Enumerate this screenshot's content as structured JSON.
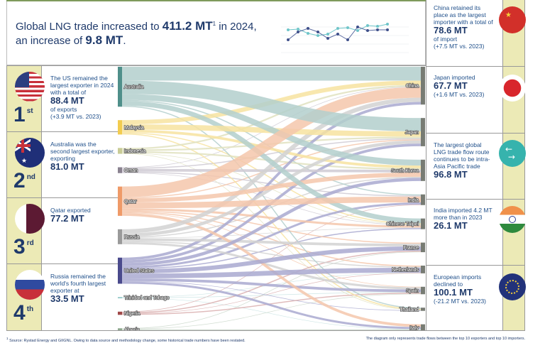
{
  "header": {
    "line1_prefix": "Global LNG trade increased to ",
    "line1_value": "411.2 MT",
    "line1_footnote": "1",
    "line1_suffix": " in 2024,",
    "line2_prefix": "an increase of ",
    "line2_value": "9.8 MT",
    "line2_suffix": "."
  },
  "exporters_panel": [
    {
      "rank": "1",
      "suffix": "st",
      "flag": "us-flag",
      "text": "The US remained the largest exporter in 2024 with a total of",
      "value": "88.4 MT",
      "after": "of exports",
      "change": "(+3.9 MT vs. 2023)"
    },
    {
      "rank": "2",
      "suffix": "nd",
      "flag": "australia-flag",
      "text": "Australia was the second largest exporter, exporting",
      "value": "81.0 MT"
    },
    {
      "rank": "3",
      "suffix": "rd",
      "flag": "qatar-flag",
      "text": "Qatar exported",
      "value": "77.2 MT"
    },
    {
      "rank": "4",
      "suffix": "th",
      "flag": "russia-flag",
      "text": "Russia remained the world's fourth largest exporter at",
      "value": "33.5 MT"
    }
  ],
  "importers_panel": [
    {
      "flag": "china-flag",
      "text": "China retained its place as  the largest importer with a total of",
      "value": "78.6 MT",
      "after": "of import",
      "change": "(+7.5 MT vs. 2023)"
    },
    {
      "flag": "japan-flag",
      "text": "Japan imported",
      "value": "67.7 MT",
      "change": "(+1.6 MT vs. 2023)"
    },
    {
      "flag": "trade-flow-arrows-icon",
      "text": "The largest global LNG trade flow route continues to be intra-Asia Pacific trade",
      "value": "96.8 MT"
    },
    {
      "flag": "india-flag",
      "text": "India imported 4.2 MT more than in 2023",
      "value": "26.1 MT"
    },
    {
      "flag": "eu-flag",
      "text": "European imports declined to",
      "value": "100.1 MT",
      "change": "(-21.2 MT vs. 2023)"
    }
  ],
  "footer": {
    "source": "Source: Rystad Energy and GIIGNL. Owing to data source and methodology change, some historical trade numbers have been restated.",
    "source_mark": "1",
    "note": "The diagram only represents trade flows between the top 10 exporters and top 10 importers."
  },
  "chart_data": {
    "type": "sankey",
    "unit": "MT",
    "sources": [
      {
        "name": "Australia",
        "color": "#4f8f8a",
        "link_color": "#b3cfcc"
      },
      {
        "name": "Malaysia",
        "color": "#f2cc4f",
        "link_color": "#f7e3a0"
      },
      {
        "name": "Indonesia",
        "color": "#c9cc96",
        "link_color": "#e0e2c0"
      },
      {
        "name": "Oman",
        "color": "#8a8290",
        "link_color": "#cfcad3"
      },
      {
        "name": "Qatar",
        "color": "#ef9a68",
        "link_color": "#f5c7ab"
      },
      {
        "name": "Russia",
        "color": "#9a9a9a",
        "link_color": "#d2d2d2"
      },
      {
        "name": "United States",
        "color": "#4a4a8c",
        "link_color": "#a9a9d0"
      },
      {
        "name": "Trinidad and Tobago",
        "color": "#7fbfbf",
        "link_color": "#c5e2e2"
      },
      {
        "name": "Nigeria",
        "color": "#a04848",
        "link_color": "#dab0b0"
      },
      {
        "name": "Algeria",
        "color": "#8fa88f",
        "link_color": "#cbd8cb"
      }
    ],
    "targets": [
      {
        "name": "China",
        "color": "#777b73"
      },
      {
        "name": "Japan",
        "color": "#777b73"
      },
      {
        "name": "South Korea",
        "color": "#777b73"
      },
      {
        "name": "India",
        "color": "#777b73"
      },
      {
        "name": "Chinese Taipei",
        "color": "#777b73"
      },
      {
        "name": "France",
        "color": "#777b73"
      },
      {
        "name": "Netherlands",
        "color": "#777b73"
      },
      {
        "name": "Spain",
        "color": "#777b73"
      },
      {
        "name": "Thailand",
        "color": "#777b73"
      },
      {
        "name": "Italy",
        "color": "#777b73"
      }
    ],
    "links": [
      [
        "Australia",
        "China",
        26
      ],
      [
        "Australia",
        "Japan",
        25
      ],
      [
        "Australia",
        "South Korea",
        11
      ],
      [
        "Australia",
        "India",
        2
      ],
      [
        "Australia",
        "Chinese Taipei",
        9
      ],
      [
        "Australia",
        "Thailand",
        2
      ],
      [
        "Malaysia",
        "China",
        8
      ],
      [
        "Malaysia",
        "Japan",
        10
      ],
      [
        "Malaysia",
        "South Korea",
        5
      ],
      [
        "Malaysia",
        "Chinese Taipei",
        2
      ],
      [
        "Malaysia",
        "Thailand",
        2
      ],
      [
        "Indonesia",
        "China",
        3
      ],
      [
        "Indonesia",
        "Japan",
        3
      ],
      [
        "Indonesia",
        "South Korea",
        3
      ],
      [
        "Indonesia",
        "Chinese Taipei",
        1
      ],
      [
        "Indonesia",
        "Thailand",
        1
      ],
      [
        "Oman",
        "China",
        1
      ],
      [
        "Oman",
        "Japan",
        2
      ],
      [
        "Oman",
        "South Korea",
        5
      ],
      [
        "Oman",
        "India",
        2
      ],
      [
        "Oman",
        "Chinese Taipei",
        1
      ],
      [
        "Qatar",
        "China",
        20
      ],
      [
        "Qatar",
        "Japan",
        2
      ],
      [
        "Qatar",
        "South Korea",
        8
      ],
      [
        "Qatar",
        "India",
        11
      ],
      [
        "Qatar",
        "Chinese Taipei",
        4
      ],
      [
        "Qatar",
        "France",
        2
      ],
      [
        "Qatar",
        "Netherlands",
        2
      ],
      [
        "Qatar",
        "Spain",
        1
      ],
      [
        "Qatar",
        "Italy",
        5
      ],
      [
        "Russia",
        "China",
        8
      ],
      [
        "Russia",
        "Japan",
        6
      ],
      [
        "Russia",
        "South Korea",
        2
      ],
      [
        "Russia",
        "Chinese Taipei",
        1
      ],
      [
        "Russia",
        "France",
        5
      ],
      [
        "Russia",
        "Netherlands",
        2
      ],
      [
        "Russia",
        "Spain",
        4
      ],
      [
        "United States",
        "China",
        5
      ],
      [
        "United States",
        "Japan",
        5
      ],
      [
        "United States",
        "South Korea",
        6
      ],
      [
        "United States",
        "India",
        4
      ],
      [
        "United States",
        "Chinese Taipei",
        2
      ],
      [
        "United States",
        "France",
        8
      ],
      [
        "United States",
        "Netherlands",
        9
      ],
      [
        "United States",
        "Spain",
        5
      ],
      [
        "United States",
        "Thailand",
        1
      ],
      [
        "United States",
        "Italy",
        4
      ],
      [
        "Trinidad and Tobago",
        "Netherlands",
        0.5
      ],
      [
        "Trinidad and Tobago",
        "Spain",
        1
      ],
      [
        "Trinidad and Tobago",
        "Italy",
        0.5
      ],
      [
        "Nigeria",
        "India",
        1
      ],
      [
        "Nigeria",
        "France",
        2
      ],
      [
        "Nigeria",
        "Netherlands",
        1
      ],
      [
        "Nigeria",
        "Spain",
        2
      ],
      [
        "Algeria",
        "France",
        1
      ],
      [
        "Algeria",
        "Spain",
        1
      ],
      [
        "Algeria",
        "Italy",
        3
      ]
    ]
  }
}
